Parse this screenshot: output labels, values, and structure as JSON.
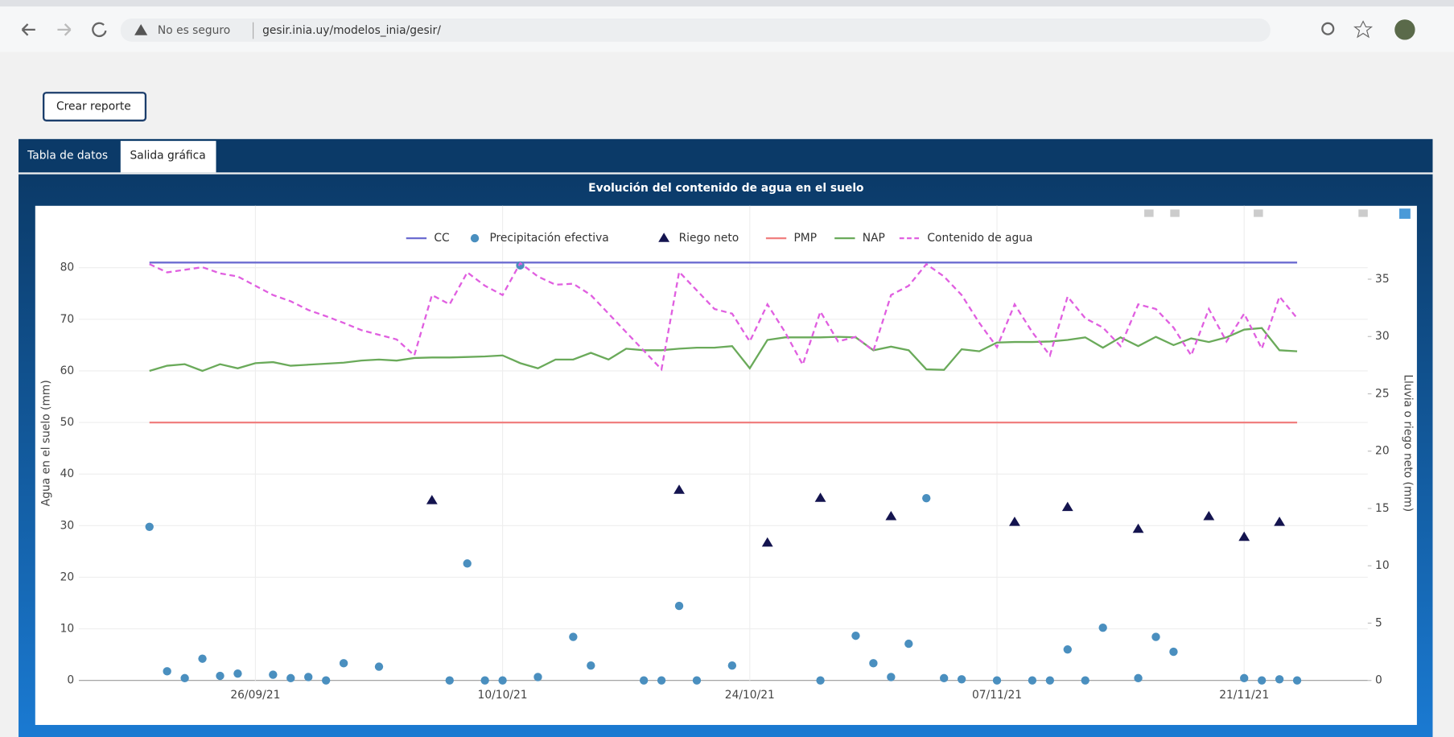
{
  "browser": {
    "security": "No es seguro",
    "url": "gesir.inia.uy/modelos_inia/gesir/"
  },
  "button": "Crear reporte",
  "tabs": [
    "Tabla de datos",
    "Salida gráfica"
  ],
  "chart_data": {
    "type": "line",
    "title": "Evolución del contenido de agua en el suelo",
    "y_label": "Agua en el suelo (mm)",
    "y2_label": "Lluvia o riego neto (mm)",
    "x": [
      "20/09/21",
      "21/09/21",
      "22/09/21",
      "23/09/21",
      "24/09/21",
      "25/09/21",
      "26/09/21",
      "27/09/21",
      "28/09/21",
      "29/09/21",
      "30/09/21",
      "01/10/21",
      "02/10/21",
      "03/10/21",
      "04/10/21",
      "05/10/21",
      "06/10/21",
      "07/10/21",
      "08/10/21",
      "09/10/21",
      "10/10/21",
      "11/10/21",
      "12/10/21",
      "13/10/21",
      "14/10/21",
      "15/10/21",
      "16/10/21",
      "17/10/21",
      "18/10/21",
      "19/10/21",
      "20/10/21",
      "21/10/21",
      "22/10/21",
      "23/10/21",
      "24/10/21",
      "25/10/21",
      "26/10/21",
      "27/10/21",
      "28/10/21",
      "29/10/21",
      "30/10/21",
      "31/10/21",
      "01/11/21",
      "02/11/21",
      "03/11/21",
      "04/11/21",
      "05/11/21",
      "06/11/21",
      "07/11/21",
      "08/11/21",
      "09/11/21",
      "10/11/21",
      "11/11/21",
      "12/11/21",
      "13/11/21",
      "14/11/21",
      "15/11/21",
      "16/11/21",
      "17/11/21",
      "18/11/21",
      "19/11/21",
      "20/11/21",
      "21/11/21",
      "22/11/21",
      "23/11/21",
      "24/11/21"
    ],
    "xlim": [
      "16/09/21",
      "28/11/21"
    ],
    "xticks": [
      "26/09/21",
      "10/10/21",
      "24/10/21",
      "07/11/21",
      "21/11/21"
    ],
    "ylim": [
      0,
      92
    ],
    "yticks": [
      0,
      10,
      20,
      30,
      40,
      50,
      60,
      70,
      80
    ],
    "y2lim": [
      0,
      41.4
    ],
    "y2ticks": [
      0,
      5,
      10,
      15,
      20,
      25,
      30,
      35
    ],
    "grid": true,
    "series": [
      {
        "name": "CC",
        "color": "#6b6bd0",
        "mode": "line",
        "values": [
          81,
          81,
          81,
          81,
          81,
          81,
          81,
          81,
          81,
          81,
          81,
          81,
          81,
          81,
          81,
          81,
          81,
          81,
          81,
          81,
          81,
          81,
          81,
          81,
          81,
          81,
          81,
          81,
          81,
          81,
          81,
          81,
          81,
          81,
          81,
          81,
          81,
          81,
          81,
          81,
          81,
          81,
          81,
          81,
          81,
          81,
          81,
          81,
          81,
          81,
          81,
          81,
          81,
          81,
          81,
          81,
          81,
          81,
          81,
          81,
          81,
          81,
          81,
          81,
          81,
          81
        ]
      },
      {
        "name": "Precipitación efectiva",
        "color": "#4a8fbf",
        "mode": "markers",
        "marker": "circle",
        "axis": "y2",
        "values": [
          13.4,
          0.8,
          0.2,
          1.9,
          0.4,
          0.6,
          null,
          0.5,
          0.2,
          0.3,
          0,
          1.5,
          null,
          1.2,
          null,
          null,
          null,
          0,
          10.2,
          0,
          0,
          36.2,
          0.3,
          null,
          3.8,
          1.3,
          null,
          null,
          0,
          0,
          6.5,
          0,
          null,
          1.3,
          null,
          null,
          null,
          null,
          0,
          null,
          3.9,
          1.5,
          0.3,
          3.2,
          15.9,
          0.2,
          0.1,
          null,
          0,
          null,
          0,
          0,
          2.7,
          0,
          4.6,
          null,
          0.2,
          3.8,
          2.5,
          null,
          null,
          null,
          0.2,
          0,
          0.1,
          0
        ]
      },
      {
        "name": "Riego neto",
        "color": "#14144f",
        "mode": "markers",
        "marker": "triangle",
        "axis": "y2",
        "values": [
          null,
          null,
          null,
          null,
          null,
          null,
          null,
          null,
          null,
          null,
          null,
          null,
          null,
          null,
          null,
          null,
          15.7,
          null,
          null,
          null,
          null,
          null,
          null,
          null,
          null,
          null,
          null,
          null,
          null,
          null,
          16.6,
          null,
          null,
          null,
          null,
          12.0,
          null,
          null,
          15.9,
          null,
          null,
          null,
          14.3,
          null,
          null,
          null,
          null,
          null,
          null,
          13.8,
          null,
          null,
          15.1,
          null,
          null,
          null,
          13.2,
          null,
          null,
          null,
          14.3,
          null,
          12.5,
          null,
          13.8,
          null
        ]
      },
      {
        "name": "PMP",
        "color": "#f07f7f",
        "mode": "line",
        "values": [
          50,
          50,
          50,
          50,
          50,
          50,
          50,
          50,
          50,
          50,
          50,
          50,
          50,
          50,
          50,
          50,
          50,
          50,
          50,
          50,
          50,
          50,
          50,
          50,
          50,
          50,
          50,
          50,
          50,
          50,
          50,
          50,
          50,
          50,
          50,
          50,
          50,
          50,
          50,
          50,
          50,
          50,
          50,
          50,
          50,
          50,
          50,
          50,
          50,
          50,
          50,
          50,
          50,
          50,
          50,
          50,
          50,
          50,
          50,
          50,
          50,
          50,
          50,
          50,
          50,
          50
        ]
      },
      {
        "name": "NAP",
        "color": "#6aaa5a",
        "mode": "line",
        "values": [
          60.0,
          61.0,
          61.3,
          60.0,
          61.3,
          60.5,
          61.5,
          61.7,
          61.0,
          61.2,
          61.4,
          61.6,
          62.0,
          62.2,
          62.0,
          62.5,
          62.6,
          62.6,
          62.7,
          62.8,
          63.0,
          61.5,
          60.5,
          62.2,
          62.2,
          63.5,
          62.2,
          64.3,
          64.0,
          64.0,
          64.3,
          64.5,
          64.5,
          64.8,
          60.5,
          66.0,
          66.5,
          66.5,
          66.5,
          66.6,
          66.5,
          64.0,
          64.7,
          64.0,
          60.3,
          60.2,
          64.2,
          63.8,
          65.5,
          65.6,
          65.6,
          65.7,
          66.0,
          66.5,
          64.5,
          66.5,
          64.8,
          66.6,
          65.0,
          66.3,
          65.6,
          66.5,
          68.0,
          68.3,
          64.0,
          63.8
        ]
      },
      {
        "name": "Contenido de agua",
        "color": "#e05fe0",
        "mode": "line",
        "dash": true,
        "values": [
          80.7,
          79.1,
          79.6,
          80.1,
          78.9,
          78.3,
          76.5,
          74.7,
          73.5,
          71.8,
          70.6,
          69.3,
          67.9,
          67.0,
          66.1,
          63.0,
          74.7,
          72.9,
          79.1,
          76.5,
          74.7,
          80.9,
          78.3,
          76.7,
          76.9,
          74.7,
          71.1,
          67.5,
          63.9,
          60.3,
          79.2,
          75.6,
          72.0,
          71.1,
          65.7,
          72.9,
          67.5,
          61.2,
          71.5,
          65.7,
          66.6,
          63.9,
          74.7,
          76.5,
          80.7,
          78.3,
          74.7,
          69.3,
          64.6,
          72.9,
          67.5,
          63.0,
          74.4,
          70.2,
          68.4,
          64.8,
          72.9,
          72.0,
          68.4,
          63.0,
          72.0,
          65.7,
          71.1,
          64.3,
          74.4,
          70.2
        ]
      }
    ]
  }
}
